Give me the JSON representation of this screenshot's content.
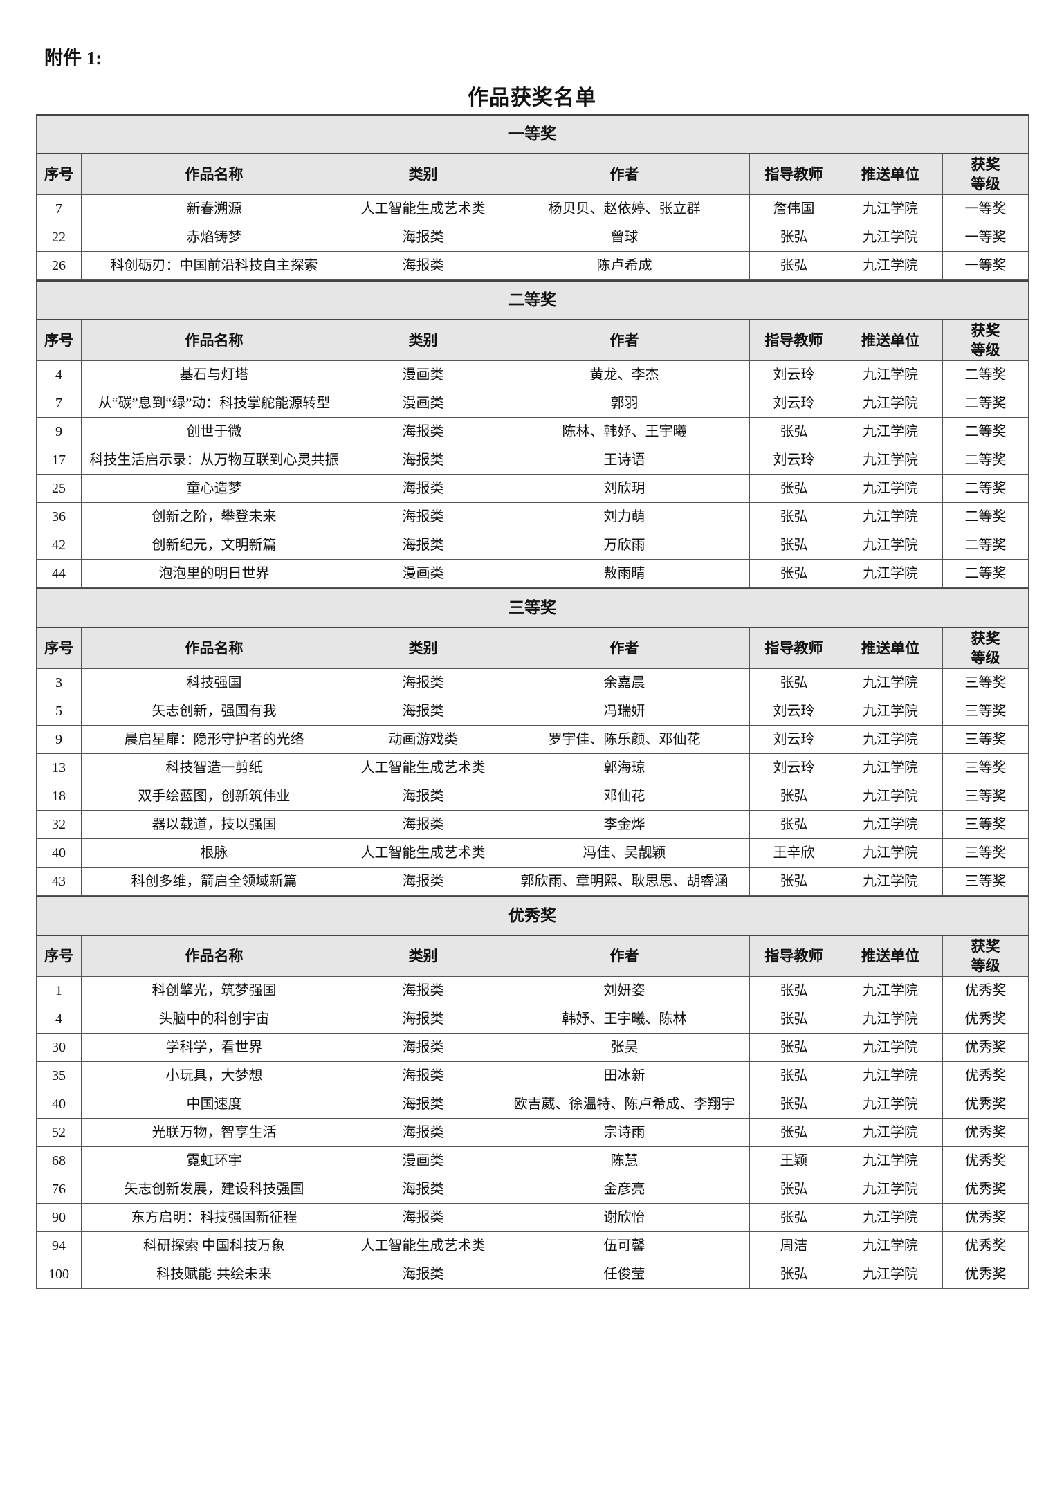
{
  "attachment_label": "附件 1:",
  "title": "作品获奖名单",
  "columns": [
    "序号",
    "作品名称",
    "类别",
    "作者",
    "指导教师",
    "推送单位",
    "获奖\n等级"
  ],
  "sections": [
    {
      "name": "一等奖",
      "rows": [
        [
          "7",
          "新春溯源",
          "人工智能生成艺术类",
          "杨贝贝、赵依婷、张立群",
          "詹伟国",
          "九江学院",
          "一等奖"
        ],
        [
          "22",
          "赤焰铸梦",
          "海报类",
          "曾球",
          "张弘",
          "九江学院",
          "一等奖"
        ],
        [
          "26",
          "科创砺刃：中国前沿科技自主探索",
          "海报类",
          "陈卢希成",
          "张弘",
          "九江学院",
          "一等奖"
        ]
      ]
    },
    {
      "name": "二等奖",
      "rows": [
        [
          "4",
          "基石与灯塔",
          "漫画类",
          "黄龙、李杰",
          "刘云玲",
          "九江学院",
          "二等奖"
        ],
        [
          "7",
          "从“碳”息到“绿”动：科技掌舵能源转型",
          "漫画类",
          "郭羽",
          "刘云玲",
          "九江学院",
          "二等奖"
        ],
        [
          "9",
          "创世于微",
          "海报类",
          "陈林、韩妤、王宇曦",
          "张弘",
          "九江学院",
          "二等奖"
        ],
        [
          "17",
          "科技生活启示录：从万物互联到心灵共振",
          "海报类",
          "王诗语",
          "刘云玲",
          "九江学院",
          "二等奖"
        ],
        [
          "25",
          "童心造梦",
          "海报类",
          "刘欣玥",
          "张弘",
          "九江学院",
          "二等奖"
        ],
        [
          "36",
          "创新之阶，攀登未来",
          "海报类",
          "刘力萌",
          "张弘",
          "九江学院",
          "二等奖"
        ],
        [
          "42",
          "创新纪元，文明新篇",
          "海报类",
          "万欣雨",
          "张弘",
          "九江学院",
          "二等奖"
        ],
        [
          "44",
          "泡泡里的明日世界",
          "漫画类",
          "敖雨晴",
          "张弘",
          "九江学院",
          "二等奖"
        ]
      ]
    },
    {
      "name": "三等奖",
      "rows": [
        [
          "3",
          "科技强国",
          "海报类",
          "余嘉晨",
          "张弘",
          "九江学院",
          "三等奖"
        ],
        [
          "5",
          "矢志创新，强国有我",
          "海报类",
          "冯瑞妍",
          "刘云玲",
          "九江学院",
          "三等奖"
        ],
        [
          "9",
          "晨启星扉：隐形守护者的光络",
          "动画游戏类",
          "罗宇佳、陈乐颜、邓仙花",
          "刘云玲",
          "九江学院",
          "三等奖"
        ],
        [
          "13",
          "科技智造一剪纸",
          "人工智能生成艺术类",
          "郭海琼",
          "刘云玲",
          "九江学院",
          "三等奖"
        ],
        [
          "18",
          "双手绘蓝图，创新筑伟业",
          "海报类",
          "邓仙花",
          "张弘",
          "九江学院",
          "三等奖"
        ],
        [
          "32",
          "器以载道，技以强国",
          "海报类",
          "李金烨",
          "张弘",
          "九江学院",
          "三等奖"
        ],
        [
          "40",
          "根脉",
          "人工智能生成艺术类",
          "冯佳、吴靓颖",
          "王辛欣",
          "九江学院",
          "三等奖"
        ],
        [
          "43",
          "科创多维，箭启全领域新篇",
          "海报类",
          "郭欣雨、章明熙、耿思思、胡睿涵",
          "张弘",
          "九江学院",
          "三等奖"
        ]
      ]
    },
    {
      "name": "优秀奖",
      "rows": [
        [
          "1",
          "科创擎光，筑梦强国",
          "海报类",
          "刘妍姿",
          "张弘",
          "九江学院",
          "优秀奖"
        ],
        [
          "4",
          "头脑中的科创宇宙",
          "海报类",
          "韩妤、王宇曦、陈林",
          "张弘",
          "九江学院",
          "优秀奖"
        ],
        [
          "30",
          "学科学，看世界",
          "海报类",
          "张昊",
          "张弘",
          "九江学院",
          "优秀奖"
        ],
        [
          "35",
          "小玩具，大梦想",
          "海报类",
          "田冰新",
          "张弘",
          "九江学院",
          "优秀奖"
        ],
        [
          "40",
          "中国速度",
          "海报类",
          "欧吉葳、徐温特、陈卢希成、李翔宇",
          "张弘",
          "九江学院",
          "优秀奖"
        ],
        [
          "52",
          "光联万物，智享生活",
          "海报类",
          "宗诗雨",
          "张弘",
          "九江学院",
          "优秀奖"
        ],
        [
          "68",
          "霓虹环宇",
          "漫画类",
          "陈慧",
          "王颖",
          "九江学院",
          "优秀奖"
        ],
        [
          "76",
          "矢志创新发展，建设科技强国",
          "海报类",
          "金彦亮",
          "张弘",
          "九江学院",
          "优秀奖"
        ],
        [
          "90",
          "东方启明：科技强国新征程",
          "海报类",
          "谢欣怡",
          "张弘",
          "九江学院",
          "优秀奖"
        ],
        [
          "94",
          "科研探索 中国科技万象",
          "人工智能生成艺术类",
          "伍可馨",
          "周洁",
          "九江学院",
          "优秀奖"
        ],
        [
          "100",
          "科技赋能·共绘未来",
          "海报类",
          "任俊莹",
          "张弘",
          "九江学院",
          "优秀奖"
        ]
      ]
    }
  ]
}
